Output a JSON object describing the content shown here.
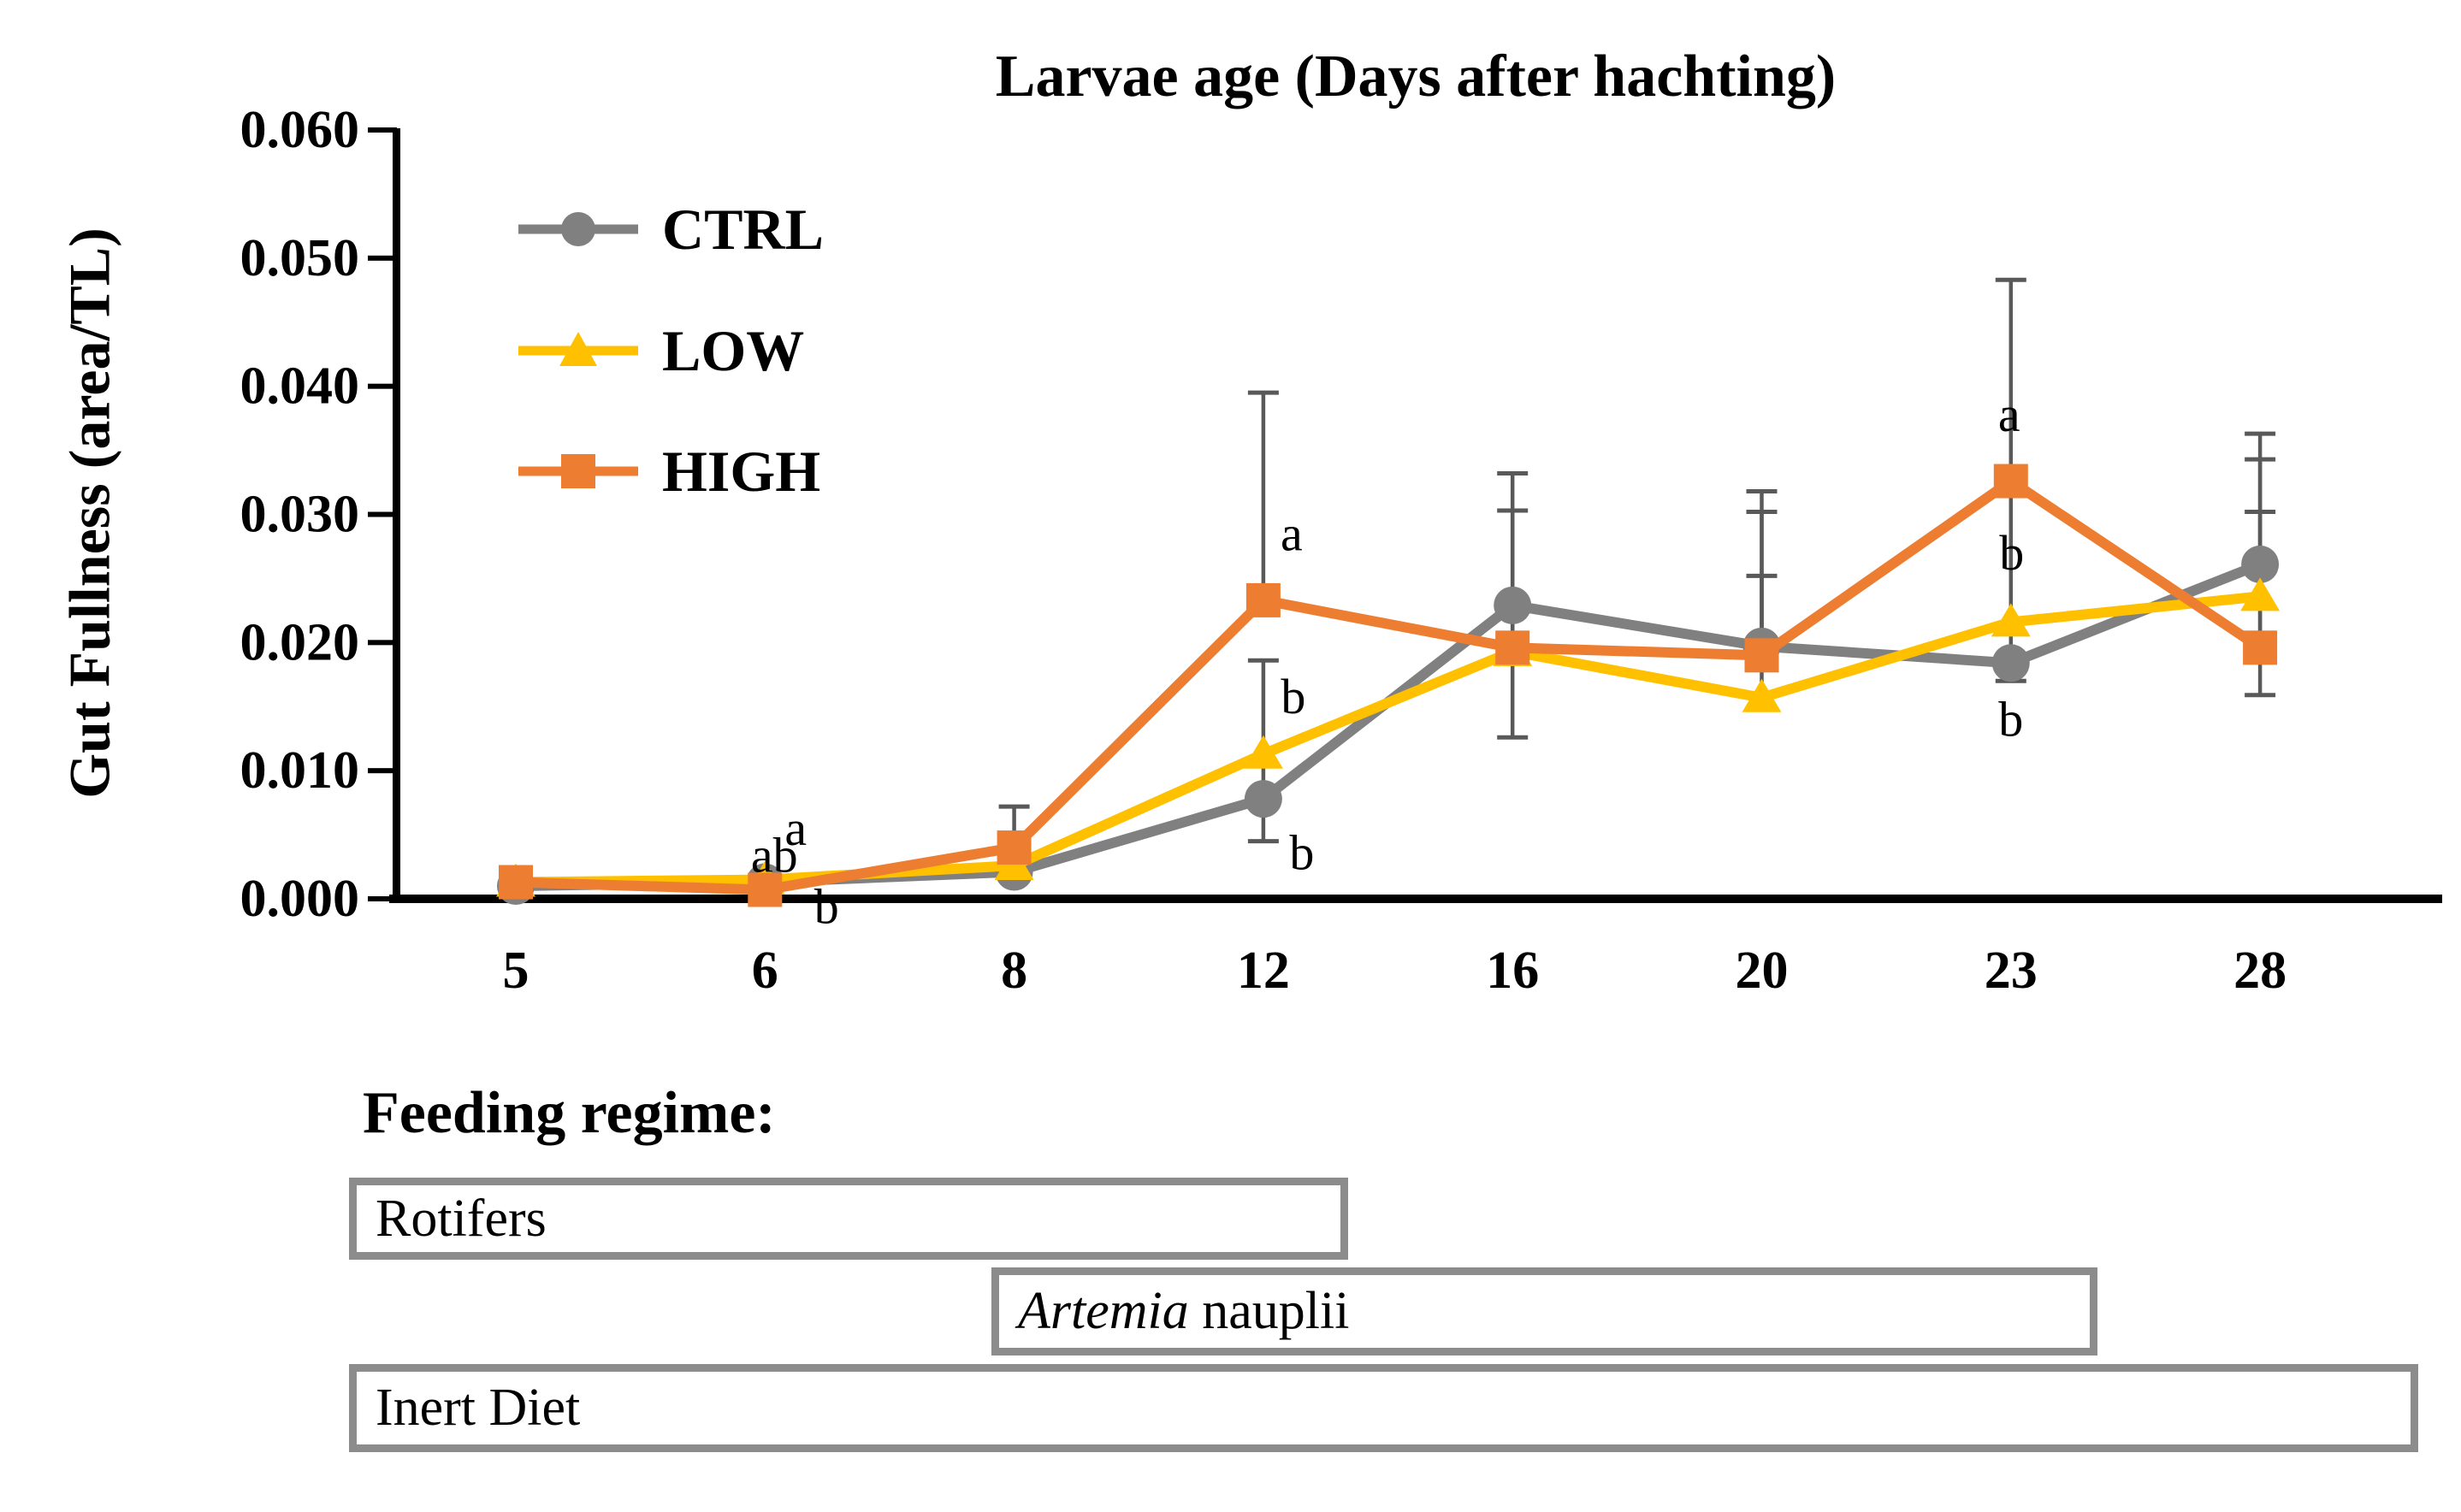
{
  "chart_data": {
    "type": "line",
    "title": "Larvae age (Days after hachting)",
    "title_position": "top",
    "ylabel": "Gut Fullness (area/TL)",
    "xlabel": "Larvae age (Days after hachting)",
    "categories": [
      "5",
      "6",
      "8",
      "12",
      "16",
      "20",
      "23",
      "28"
    ],
    "ylim": [
      0.0,
      0.06
    ],
    "y_ticks": [
      "0.000",
      "0.010",
      "0.020",
      "0.030",
      "0.040",
      "0.050",
      "0.060"
    ],
    "grid": false,
    "legend_position": "upper-left-inside",
    "axis_color": "#000000",
    "error_bar_color": "#595959",
    "series": [
      {
        "name": "CTRL",
        "color": "#808080",
        "marker": "circle",
        "values": [
          0.001,
          0.0013,
          0.0021,
          0.0078,
          0.0229,
          0.0197,
          0.0184,
          0.0261
        ],
        "error_top": [
          null,
          null,
          null,
          null,
          0.0332,
          0.0318,
          null,
          0.0363
        ],
        "error_bottom": [
          null,
          null,
          null,
          null,
          0.0126,
          null,
          null,
          0.0159
        ]
      },
      {
        "name": "LOW",
        "color": "#FFC000",
        "marker": "triangle",
        "values": [
          0.0013,
          0.0015,
          0.0026,
          0.0113,
          0.0193,
          0.0157,
          0.0216,
          0.0236
        ],
        "error_top": [
          null,
          null,
          null,
          0.0186,
          null,
          0.0252,
          null,
          0.0343
        ],
        "error_bottom": [
          null,
          null,
          null,
          0.0045,
          null,
          null,
          null,
          null
        ]
      },
      {
        "name": "HIGH",
        "color": "#ED7D31",
        "marker": "square",
        "values": [
          0.0013,
          0.0007,
          0.004,
          0.0233,
          0.0196,
          0.019,
          0.0326,
          0.0196
        ],
        "error_top": [
          null,
          null,
          0.0072,
          0.0395,
          0.0303,
          0.0302,
          0.0483,
          0.0302
        ],
        "error_bottom": [
          null,
          null,
          null,
          null,
          null,
          null,
          0.017,
          null
        ]
      }
    ],
    "annotations": [
      {
        "text": "a",
        "x_index": 1,
        "dx": 36,
        "value": 0.0055
      },
      {
        "text": "ab",
        "x_index": 1,
        "dx": 11,
        "value": 0.0034
      },
      {
        "text": "b",
        "x_index": 1,
        "dx": 72,
        "value": -0.0006
      },
      {
        "text": "a",
        "x_index": 3,
        "dx": 33,
        "value": 0.0285
      },
      {
        "text": "b",
        "x_index": 3,
        "dx": 35,
        "value": 0.0158
      },
      {
        "text": "b",
        "x_index": 3,
        "dx": 45,
        "value": 0.0036
      },
      {
        "text": "a",
        "x_index": 6,
        "dx": -2,
        "value": 0.0378
      },
      {
        "text": "b",
        "x_index": 6,
        "dx": 1,
        "value": 0.027
      },
      {
        "text": "b",
        "x_index": 6,
        "dx": 0,
        "value": 0.014
      }
    ]
  },
  "feeding": {
    "heading": "Feeding regime:",
    "border_color": "#8C8C8C",
    "boxes": [
      {
        "italic": "",
        "text": "Rotifers"
      },
      {
        "italic": "Artemia",
        "text": " nauplii"
      },
      {
        "italic": "",
        "text": "Inert Diet"
      }
    ]
  }
}
